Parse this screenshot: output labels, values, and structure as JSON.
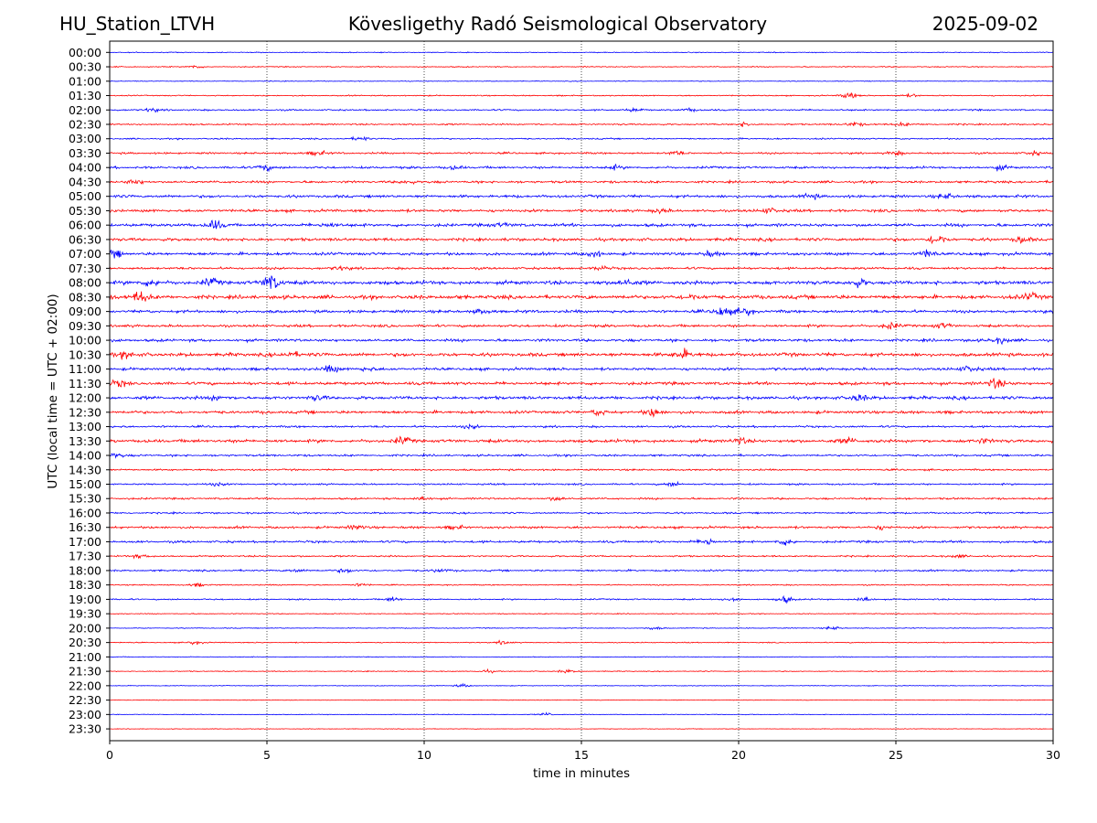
{
  "header": {
    "station": "HU_Station_LTVH",
    "observatory": "Kövesligethy Radó Seismological Observatory",
    "date": "2025-09-02"
  },
  "chart_data": {
    "type": "line",
    "title": "Kövesligethy Radó Seismological Observatory",
    "xlabel": "time in minutes",
    "ylabel": "UTC (local time = UTC + 02:00)",
    "xlim": [
      0,
      30
    ],
    "x_ticks": [
      "0",
      "5",
      "10",
      "15",
      "20",
      "25",
      "30"
    ],
    "vertical_grid_at": [
      5,
      10,
      15,
      20,
      25
    ],
    "grid_style": "dotted",
    "colors": {
      "even_hour": "#0000ff",
      "half_hour": "#ff0000"
    },
    "traces": [
      {
        "label": "00:00",
        "color": "#0000ff",
        "level": 0.6
      },
      {
        "label": "00:30",
        "color": "#ff0000",
        "level": 0.7,
        "events": [
          [
            2.7,
            1.3
          ]
        ]
      },
      {
        "label": "01:00",
        "color": "#0000ff",
        "level": 0.5
      },
      {
        "label": "01:30",
        "color": "#ff0000",
        "level": 0.8,
        "events": [
          [
            23.5,
            2.5
          ],
          [
            25.5,
            1.2
          ]
        ]
      },
      {
        "label": "02:00",
        "color": "#0000ff",
        "level": 1.1,
        "events": [
          [
            1.3,
            1.5
          ],
          [
            16.7,
            1.5
          ],
          [
            18.5,
            1.3
          ]
        ]
      },
      {
        "label": "02:30",
        "color": "#ff0000",
        "level": 1.1,
        "events": [
          [
            20.2,
            1.6
          ],
          [
            23.7,
            2.0
          ],
          [
            25.2,
            1.4
          ]
        ]
      },
      {
        "label": "03:00",
        "color": "#0000ff",
        "level": 1.0,
        "events": [
          [
            8.0,
            1.8
          ]
        ]
      },
      {
        "label": "03:30",
        "color": "#ff0000",
        "level": 1.3,
        "events": [
          [
            6.6,
            2.2
          ],
          [
            18.0,
            1.6
          ],
          [
            25.0,
            1.6
          ],
          [
            29.4,
            1.6
          ]
        ]
      },
      {
        "label": "04:00",
        "color": "#0000ff",
        "level": 1.6,
        "events": [
          [
            4.9,
            2.5
          ],
          [
            11.0,
            1.6
          ],
          [
            16.0,
            1.6
          ],
          [
            28.3,
            1.8
          ]
        ]
      },
      {
        "label": "04:30",
        "color": "#ff0000",
        "level": 1.6,
        "events": [
          [
            0.8,
            2.2
          ],
          [
            9.5,
            1.6
          ]
        ]
      },
      {
        "label": "05:00",
        "color": "#0000ff",
        "level": 1.9,
        "events": [
          [
            22.3,
            2.0
          ],
          [
            26.6,
            2.2
          ]
        ]
      },
      {
        "label": "05:30",
        "color": "#ff0000",
        "level": 1.9,
        "events": [
          [
            17.5,
            1.8
          ],
          [
            21.0,
            2.2
          ]
        ]
      },
      {
        "label": "06:00",
        "color": "#0000ff",
        "level": 2.1,
        "events": [
          [
            3.3,
            4.0
          ],
          [
            7.0,
            2.0
          ],
          [
            12.5,
            1.8
          ]
        ]
      },
      {
        "label": "06:30",
        "color": "#ff0000",
        "level": 2.1,
        "events": [
          [
            26.3,
            4.0
          ],
          [
            29.0,
            2.5
          ]
        ]
      },
      {
        "label": "07:00",
        "color": "#0000ff",
        "level": 2.0,
        "events": [
          [
            0.2,
            2.5
          ],
          [
            15.4,
            2.5
          ],
          [
            19.1,
            2.0
          ],
          [
            26.0,
            3.0
          ]
        ]
      },
      {
        "label": "07:30",
        "color": "#ff0000",
        "level": 1.6,
        "events": [
          [
            7.3,
            1.6
          ],
          [
            15.6,
            1.6
          ]
        ]
      },
      {
        "label": "08:00",
        "color": "#0000ff",
        "level": 2.6,
        "events": [
          [
            1.3,
            2.8
          ],
          [
            3.2,
            2.8
          ],
          [
            5.15,
            7.0
          ],
          [
            16.4,
            2.8
          ],
          [
            23.8,
            3.0
          ]
        ]
      },
      {
        "label": "08:30",
        "color": "#ff0000",
        "level": 2.6,
        "events": [
          [
            0.95,
            4.8
          ],
          [
            18.5,
            2.2
          ],
          [
            29.3,
            2.8
          ]
        ]
      },
      {
        "label": "09:00",
        "color": "#0000ff",
        "level": 2.0,
        "events": [
          [
            11.8,
            1.8
          ],
          [
            19.5,
            4.5
          ],
          [
            20.2,
            3.5
          ]
        ]
      },
      {
        "label": "09:30",
        "color": "#ff0000",
        "level": 1.8,
        "events": [
          [
            24.8,
            2.6
          ],
          [
            26.5,
            2.0
          ]
        ]
      },
      {
        "label": "10:00",
        "color": "#0000ff",
        "level": 1.9,
        "events": [
          [
            28.3,
            2.6
          ]
        ]
      },
      {
        "label": "10:30",
        "color": "#ff0000",
        "level": 2.4,
        "events": [
          [
            0.5,
            2.8
          ],
          [
            5.8,
            2.2
          ],
          [
            18.2,
            4.0
          ]
        ]
      },
      {
        "label": "11:00",
        "color": "#0000ff",
        "level": 1.9,
        "events": [
          [
            7.0,
            3.0
          ],
          [
            8.2,
            1.6
          ],
          [
            27.3,
            2.6
          ]
        ]
      },
      {
        "label": "11:30",
        "color": "#ff0000",
        "level": 2.1,
        "events": [
          [
            0.3,
            2.5
          ],
          [
            28.2,
            4.5
          ]
        ]
      },
      {
        "label": "12:00",
        "color": "#0000ff",
        "level": 2.2,
        "events": [
          [
            3.4,
            2.0
          ],
          [
            6.6,
            2.0
          ],
          [
            23.8,
            3.0
          ]
        ]
      },
      {
        "label": "12:30",
        "color": "#ff0000",
        "level": 2.0,
        "events": [
          [
            17.3,
            3.6
          ],
          [
            15.5,
            2.2
          ]
        ]
      },
      {
        "label": "13:00",
        "color": "#0000ff",
        "level": 1.4,
        "events": [
          [
            11.5,
            1.4
          ]
        ]
      },
      {
        "label": "13:30",
        "color": "#ff0000",
        "level": 2.2,
        "events": [
          [
            9.3,
            2.8
          ],
          [
            20.0,
            2.4
          ],
          [
            23.5,
            2.4
          ],
          [
            27.8,
            2.0
          ]
        ]
      },
      {
        "label": "14:00",
        "color": "#0000ff",
        "level": 1.4,
        "events": [
          [
            0.2,
            1.8
          ]
        ]
      },
      {
        "label": "14:30",
        "color": "#ff0000",
        "level": 1.2
      },
      {
        "label": "15:00",
        "color": "#0000ff",
        "level": 1.2,
        "events": [
          [
            17.9,
            1.8
          ],
          [
            3.4,
            1.3
          ]
        ]
      },
      {
        "label": "15:30",
        "color": "#ff0000",
        "level": 1.3,
        "events": [
          [
            9.9,
            1.8
          ],
          [
            14.2,
            1.6
          ]
        ]
      },
      {
        "label": "16:00",
        "color": "#0000ff",
        "level": 1.2
      },
      {
        "label": "16:30",
        "color": "#ff0000",
        "level": 1.6,
        "events": [
          [
            7.8,
            2.0
          ],
          [
            11.0,
            1.4
          ],
          [
            24.5,
            1.4
          ]
        ]
      },
      {
        "label": "17:00",
        "color": "#0000ff",
        "level": 1.6,
        "events": [
          [
            19.0,
            2.8
          ],
          [
            21.5,
            2.4
          ]
        ]
      },
      {
        "label": "17:30",
        "color": "#ff0000",
        "level": 1.1,
        "events": [
          [
            1.0,
            1.5
          ],
          [
            27.0,
            1.3
          ]
        ]
      },
      {
        "label": "18:00",
        "color": "#0000ff",
        "level": 1.2,
        "events": [
          [
            7.5,
            1.8
          ],
          [
            10.5,
            1.5
          ],
          [
            6.0,
            1.5
          ]
        ]
      },
      {
        "label": "18:30",
        "color": "#ff0000",
        "level": 0.8,
        "events": [
          [
            2.8,
            1.4
          ],
          [
            8.0,
            1.2
          ]
        ]
      },
      {
        "label": "19:00",
        "color": "#0000ff",
        "level": 1.0,
        "events": [
          [
            9.0,
            1.8
          ],
          [
            21.5,
            2.8
          ],
          [
            24.0,
            2.2
          ],
          [
            19.8,
            1.8
          ]
        ]
      },
      {
        "label": "19:30",
        "color": "#ff0000",
        "level": 0.6
      },
      {
        "label": "20:00",
        "color": "#0000ff",
        "level": 0.6,
        "events": [
          [
            23.0,
            1.4
          ],
          [
            17.3,
            1.2
          ]
        ]
      },
      {
        "label": "20:30",
        "color": "#ff0000",
        "level": 0.7,
        "events": [
          [
            2.7,
            1.6
          ],
          [
            12.5,
            1.4
          ]
        ]
      },
      {
        "label": "21:00",
        "color": "#0000ff",
        "level": 0.5
      },
      {
        "label": "21:30",
        "color": "#ff0000",
        "level": 0.6,
        "events": [
          [
            14.5,
            1.4
          ],
          [
            12.0,
            1.2
          ]
        ]
      },
      {
        "label": "22:00",
        "color": "#0000ff",
        "level": 0.5,
        "events": [
          [
            11.2,
            1.3
          ]
        ]
      },
      {
        "label": "22:30",
        "color": "#ff0000",
        "level": 0.4
      },
      {
        "label": "23:00",
        "color": "#0000ff",
        "level": 0.5,
        "events": [
          [
            13.9,
            1.4
          ]
        ]
      },
      {
        "label": "23:30",
        "color": "#ff0000",
        "level": 0.4
      }
    ]
  }
}
